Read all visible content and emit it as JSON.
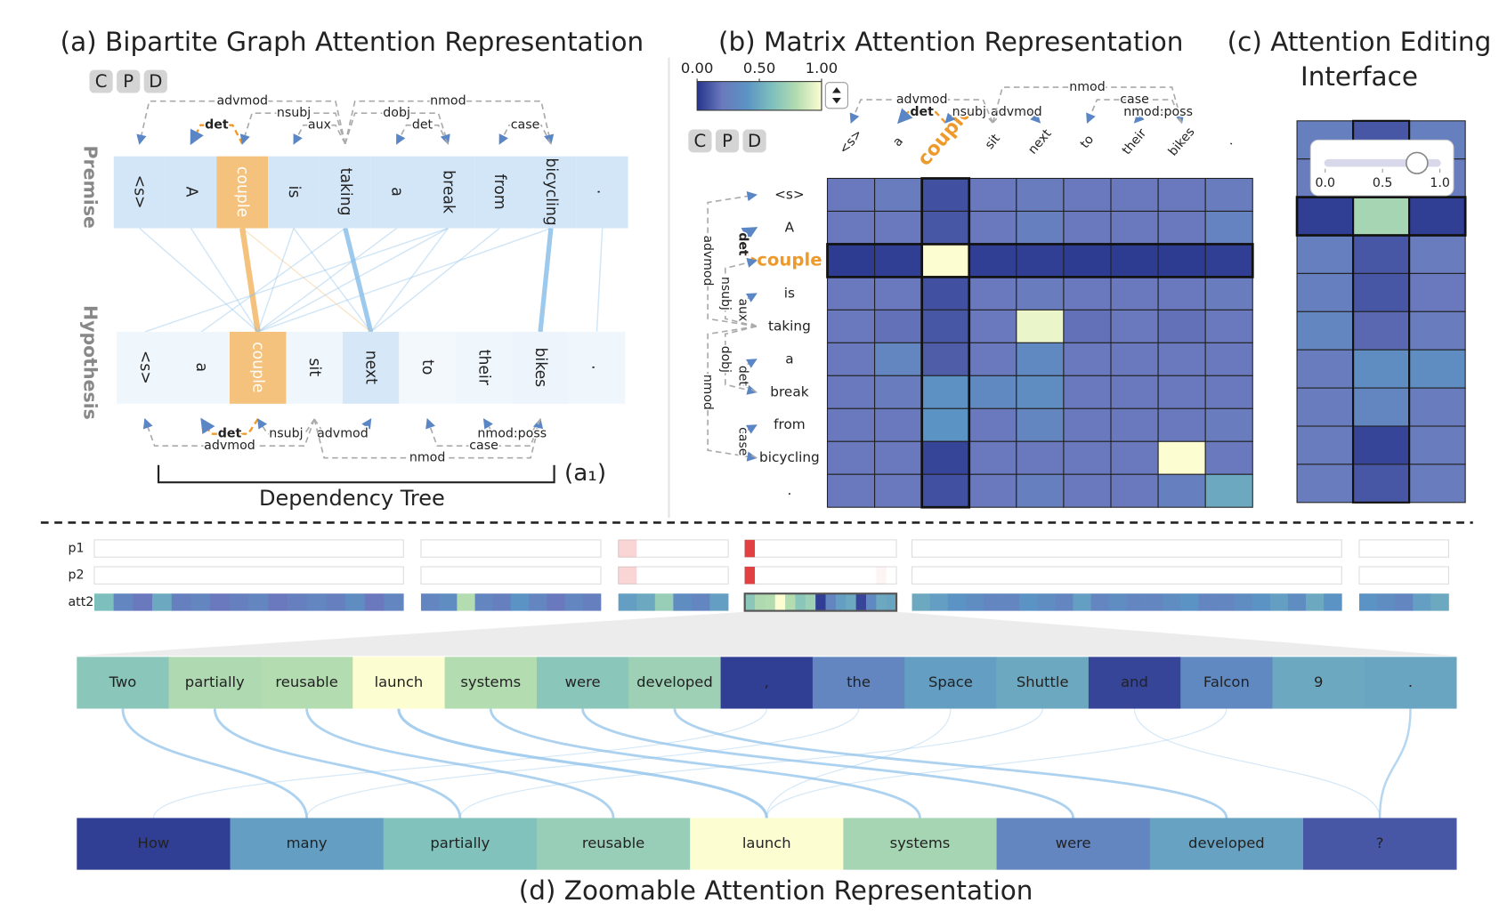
{
  "colormap": [
    "#26348c",
    "#6a79bd",
    "#5b93c4",
    "#7dbfbd",
    "#b3dcb0",
    "#fdfdd2"
  ],
  "panel_a": {
    "title": "(a) Bipartite Graph Attention Representation",
    "buttons": [
      "C",
      "P",
      "D"
    ],
    "premise_label": "Premise",
    "hypothesis_label": "Hypothesis",
    "premise_tokens": [
      "<s>",
      "A",
      "couple",
      "is",
      "taking",
      "a",
      "break",
      "from",
      "bicycling",
      "."
    ],
    "hypothesis_tokens": [
      "<s>",
      "a",
      "couple",
      "sit",
      "next",
      "to",
      "their",
      "bikes",
      "."
    ],
    "hypothesis_weights": [
      0.05,
      0.05,
      1,
      0.05,
      0.5,
      0,
      0.05,
      0.1,
      0.05
    ],
    "focus": 2,
    "focus_color": "#f4c27c",
    "focus_text_color": "#ee9a2a",
    "token_color": "#d3e6f8",
    "link_color": "#8ec1ea",
    "arc_color": "#aaaaaa",
    "premise_deps": [
      {
        "label": "advmod",
        "from": 4,
        "to": 0,
        "level": 3
      },
      {
        "label": "det",
        "from": 2,
        "to": 1,
        "level": 1,
        "focus": true
      },
      {
        "label": "nsubj",
        "from": 4,
        "to": 2,
        "level": 2
      },
      {
        "label": "aux",
        "from": 4,
        "to": 3,
        "level": 1
      },
      {
        "label": "dobj",
        "from": 4,
        "to": 6,
        "level": 2
      },
      {
        "label": "det",
        "from": 6,
        "to": 5,
        "level": 1
      },
      {
        "label": "nmod",
        "from": 4,
        "to": 8,
        "level": 3
      },
      {
        "label": "case",
        "from": 8,
        "to": 7,
        "level": 1
      }
    ],
    "hypothesis_deps": [
      {
        "label": "det",
        "from": 2,
        "to": 1,
        "level": 1,
        "focus": true
      },
      {
        "label": "advmod",
        "from": 3,
        "to": 0,
        "level": 2
      },
      {
        "label": "nsubj",
        "from": 3,
        "to": 2,
        "level": 1
      },
      {
        "label": "advmod",
        "from": 3,
        "to": 4,
        "level": 1
      },
      {
        "label": "nmod",
        "from": 3,
        "to": 7,
        "level": 3
      },
      {
        "label": "case",
        "from": 7,
        "to": 5,
        "level": 2
      },
      {
        "label": "nmod:poss",
        "from": 7,
        "to": 6,
        "level": 1
      }
    ],
    "links": [
      {
        "from": 2,
        "to": 2,
        "weight": 1
      },
      {
        "from": 4,
        "to": 4,
        "weight": 0.8
      },
      {
        "from": 8,
        "to": 7,
        "weight": 0.8
      },
      {
        "from": 0,
        "to": 2,
        "weight": 0.1
      },
      {
        "from": 1,
        "to": 2,
        "weight": 0.1
      },
      {
        "from": 3,
        "to": 4,
        "weight": 0.1
      },
      {
        "from": 5,
        "to": 2,
        "weight": 0.1
      },
      {
        "from": 6,
        "to": 2,
        "weight": 0.1
      },
      {
        "from": 6,
        "to": 4,
        "weight": 0.1
      },
      {
        "from": 7,
        "to": 4,
        "weight": 0.1
      },
      {
        "from": 8,
        "to": 2,
        "weight": 0.1
      },
      {
        "from": 9,
        "to": 8,
        "weight": 0.1
      },
      {
        "from": 4,
        "to": 1,
        "weight": 0.1
      },
      {
        "from": 2,
        "to": 4,
        "weight": 0.1
      },
      {
        "from": 6,
        "to": 0,
        "weight": 0.1
      },
      {
        "from": 3,
        "to": 2,
        "weight": 0.1
      }
    ],
    "bracket_label": "Dependency Tree",
    "annotation": "(a₁)"
  },
  "panel_b": {
    "title": "(b) Matrix Attention Representation",
    "buttons": [
      "C",
      "P",
      "D"
    ],
    "colorbar": {
      "lim": [
        0,
        1
      ],
      "ticks": [
        {
          "value": 0,
          "label": "0.00"
        },
        {
          "value": 0.5,
          "label": "0.50"
        },
        {
          "value": 1,
          "label": "1.00"
        }
      ]
    },
    "matrix": [
      [
        0.2,
        0.22,
        0.08,
        0.2,
        0.22,
        0.2,
        0.2,
        0.2,
        0.22
      ],
      [
        0.2,
        0.2,
        0.1,
        0.2,
        0.25,
        0.2,
        0.2,
        0.2,
        0.28
      ],
      [
        0.02,
        0.03,
        1,
        0.03,
        0.03,
        0.02,
        0.02,
        0.02,
        0.03
      ],
      [
        0.2,
        0.2,
        0.08,
        0.2,
        0.22,
        0.2,
        0.2,
        0.2,
        0.22
      ],
      [
        0.2,
        0.18,
        0.1,
        0.2,
        0.95,
        0.18,
        0.2,
        0.18,
        0.2
      ],
      [
        0.2,
        0.3,
        0.12,
        0.2,
        0.32,
        0.2,
        0.2,
        0.2,
        0.2
      ],
      [
        0.2,
        0.22,
        0.38,
        0.32,
        0.35,
        0.2,
        0.2,
        0.2,
        0.2
      ],
      [
        0.2,
        0.2,
        0.4,
        0.2,
        0.3,
        0.2,
        0.2,
        0.2,
        0.22
      ],
      [
        0.2,
        0.2,
        0.05,
        0.2,
        0.2,
        0.2,
        0.2,
        1,
        0.2
      ],
      [
        0.2,
        0.2,
        0.08,
        0.2,
        0.25,
        0.2,
        0.2,
        0.25,
        0.5
      ]
    ]
  },
  "panel_c": {
    "title_lines": [
      "(c) Attention Editing",
      "Interface"
    ],
    "slider": {
      "lim": [
        0,
        1
      ],
      "ticks": [
        {
          "value": 0,
          "label": "0.0"
        },
        {
          "value": 0.5,
          "label": "0.5"
        },
        {
          "value": 1,
          "label": "1.0"
        }
      ],
      "value": 0.8
    },
    "matrix": [
      [
        0.25,
        0.1,
        0.25
      ],
      [
        0.22,
        0.1,
        0.22
      ],
      [
        0.03,
        0.75,
        0.03
      ],
      [
        0.25,
        0.1,
        0.22
      ],
      [
        0.25,
        0.1,
        0.2
      ],
      [
        0.3,
        0.15,
        0.22
      ],
      [
        0.22,
        0.35,
        0.35
      ],
      [
        0.22,
        0.3,
        0.22
      ],
      [
        0.22,
        0.05,
        0.22
      ],
      [
        0.22,
        0.1,
        0.22
      ]
    ]
  },
  "panel_d": {
    "title": "(d) Zoomable Attention Representation",
    "row_labels": [
      "p1",
      "p2",
      "att2"
    ],
    "p1": [
      {
        "segment": 2,
        "index": 0,
        "value": 0.2
      },
      {
        "segment": 3,
        "index": 0,
        "value": 0.9
      }
    ],
    "p2": [
      {
        "segment": 2,
        "index": 0,
        "value": 0.2
      },
      {
        "segment": 3,
        "index": 0,
        "value": 0.9
      },
      {
        "segment": 3,
        "index": 13,
        "value": 0.05
      }
    ],
    "peak_color": "#e02c2c",
    "zoom_segment": 3,
    "att2": [
      [
        0.6,
        0.3,
        0.2,
        0.5,
        0.25,
        0.3,
        0.2,
        0.25,
        0.3,
        0.2,
        0.25,
        0.3,
        0.25,
        0.35,
        0.2,
        0.3
      ],
      [
        0.3,
        0.35,
        0.8,
        0.3,
        0.25,
        0.4,
        0.3,
        0.2,
        0.3,
        0.25
      ],
      [
        0.45,
        0.5,
        0.7,
        0.35,
        0.3,
        0.45
      ],
      [
        0.65,
        0.78,
        0.8,
        1,
        0.8,
        0.65,
        0.72,
        0.03,
        0.3,
        0.45,
        0.5,
        0.05,
        0.32,
        0.5,
        0.48
      ],
      [
        0.5,
        0.45,
        0.4,
        0.35,
        0.3,
        0.3,
        0.4,
        0.35,
        0.3,
        0.45,
        0.3,
        0.35,
        0.3,
        0.3,
        0.35,
        0.4,
        0.3,
        0.3,
        0.35,
        0.4,
        0.45,
        0.35,
        0.5,
        0.4
      ],
      [
        0.4,
        0.35,
        0.3,
        0.45,
        0.5
      ]
    ],
    "top_tokens": [
      "Two",
      "partially",
      "reusable",
      "launch",
      "systems",
      "were",
      "developed",
      ",",
      "the",
      "Space",
      "Shuttle",
      "and",
      "Falcon",
      "9",
      "."
    ],
    "bottom_tokens": [
      "How",
      "many",
      "partially",
      "reusable",
      "launch",
      "systems",
      "were",
      "developed",
      "?"
    ],
    "bottom_values": [
      0.03,
      0.45,
      0.62,
      0.7,
      1,
      0.75,
      0.3,
      0.47,
      0.1
    ],
    "links": [
      {
        "from": 0,
        "to": 1,
        "weight": 0.6
      },
      {
        "from": 1,
        "to": 2,
        "weight": 0.6
      },
      {
        "from": 2,
        "to": 3,
        "weight": 0.6
      },
      {
        "from": 3,
        "to": 4,
        "weight": 0.7
      },
      {
        "from": 4,
        "to": 5,
        "weight": 0.6
      },
      {
        "from": 5,
        "to": 6,
        "weight": 0.6
      },
      {
        "from": 6,
        "to": 7,
        "weight": 0.6
      },
      {
        "from": 14,
        "to": 8,
        "weight": 0.5
      },
      {
        "from": 12,
        "to": 4,
        "weight": 0.1
      },
      {
        "from": 9,
        "to": 4,
        "weight": 0.1
      },
      {
        "from": 7,
        "to": 0,
        "weight": 0.1
      },
      {
        "from": 10,
        "to": 2,
        "weight": 0.1
      },
      {
        "from": 11,
        "to": 8,
        "weight": 0.1
      },
      {
        "from": 8,
        "to": 1,
        "weight": 0.1
      }
    ]
  }
}
